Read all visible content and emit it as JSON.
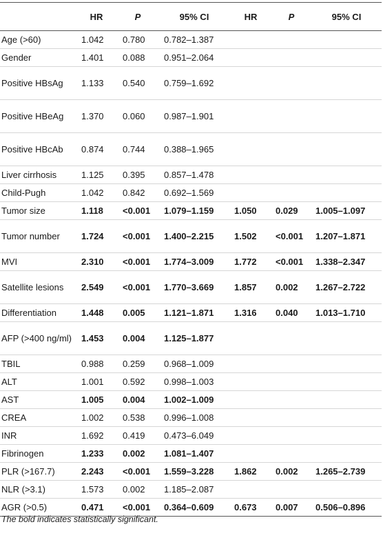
{
  "table": {
    "headers": [
      "",
      "HR",
      "P",
      "95% CI",
      "HR",
      "P",
      "95% CI"
    ],
    "rows": [
      {
        "label": "Age (>60)",
        "double": false,
        "cells": [
          {
            "v": "1.042",
            "b": false
          },
          {
            "v": "0.780",
            "b": false
          },
          {
            "v": "0.782–1.387",
            "b": false
          },
          {
            "v": "",
            "b": false
          },
          {
            "v": "",
            "b": false
          },
          {
            "v": "",
            "b": false
          }
        ]
      },
      {
        "label": "Gender",
        "double": false,
        "cells": [
          {
            "v": "1.401",
            "b": false
          },
          {
            "v": "0.088",
            "b": false
          },
          {
            "v": "0.951–2.064",
            "b": false
          },
          {
            "v": "",
            "b": false
          },
          {
            "v": "",
            "b": false
          },
          {
            "v": "",
            "b": false
          }
        ]
      },
      {
        "label": "Positive HBsAg",
        "double": true,
        "cells": [
          {
            "v": "1.133",
            "b": false
          },
          {
            "v": "0.540",
            "b": false
          },
          {
            "v": "0.759–1.692",
            "b": false
          },
          {
            "v": "",
            "b": false
          },
          {
            "v": "",
            "b": false
          },
          {
            "v": "",
            "b": false
          }
        ]
      },
      {
        "label": "Positive HBeAg",
        "double": true,
        "cells": [
          {
            "v": "1.370",
            "b": false
          },
          {
            "v": "0.060",
            "b": false
          },
          {
            "v": "0.987–1.901",
            "b": false
          },
          {
            "v": "",
            "b": false
          },
          {
            "v": "",
            "b": false
          },
          {
            "v": "",
            "b": false
          }
        ]
      },
      {
        "label": "Positive HBcAb",
        "double": true,
        "cells": [
          {
            "v": "0.874",
            "b": false
          },
          {
            "v": "0.744",
            "b": false
          },
          {
            "v": "0.388–1.965",
            "b": false
          },
          {
            "v": "",
            "b": false
          },
          {
            "v": "",
            "b": false
          },
          {
            "v": "",
            "b": false
          }
        ]
      },
      {
        "label": "Liver cirrhosis",
        "double": false,
        "cells": [
          {
            "v": "1.125",
            "b": false
          },
          {
            "v": "0.395",
            "b": false
          },
          {
            "v": "0.857–1.478",
            "b": false
          },
          {
            "v": "",
            "b": false
          },
          {
            "v": "",
            "b": false
          },
          {
            "v": "",
            "b": false
          }
        ]
      },
      {
        "label": "Child-Pugh",
        "double": false,
        "cells": [
          {
            "v": "1.042",
            "b": false
          },
          {
            "v": "0.842",
            "b": false
          },
          {
            "v": "0.692–1.569",
            "b": false
          },
          {
            "v": "",
            "b": false
          },
          {
            "v": "",
            "b": false
          },
          {
            "v": "",
            "b": false
          }
        ]
      },
      {
        "label": "Tumor size",
        "double": false,
        "cells": [
          {
            "v": "1.118",
            "b": true
          },
          {
            "v": "<0.001",
            "b": true
          },
          {
            "v": "1.079–1.159",
            "b": true
          },
          {
            "v": "1.050",
            "b": true
          },
          {
            "v": "0.029",
            "b": true
          },
          {
            "v": "1.005–1.097",
            "b": true
          }
        ]
      },
      {
        "label": "Tumor number",
        "double": true,
        "cells": [
          {
            "v": "1.724",
            "b": true
          },
          {
            "v": "<0.001",
            "b": true
          },
          {
            "v": "1.400–2.215",
            "b": true
          },
          {
            "v": "1.502",
            "b": true
          },
          {
            "v": "<0.001",
            "b": true
          },
          {
            "v": "1.207–1.871",
            "b": true
          }
        ]
      },
      {
        "label": "MVI",
        "double": false,
        "cells": [
          {
            "v": "2.310",
            "b": true
          },
          {
            "v": "<0.001",
            "b": true
          },
          {
            "v": "1.774–3.009",
            "b": true
          },
          {
            "v": "1.772",
            "b": true
          },
          {
            "v": "<0.001",
            "b": true
          },
          {
            "v": "1.338–2.347",
            "b": true
          }
        ]
      },
      {
        "label": "Satellite lesions",
        "double": true,
        "cells": [
          {
            "v": "2.549",
            "b": true
          },
          {
            "v": "<0.001",
            "b": true
          },
          {
            "v": "1.770–3.669",
            "b": true
          },
          {
            "v": "1.857",
            "b": true
          },
          {
            "v": "0.002",
            "b": true
          },
          {
            "v": "1.267–2.722",
            "b": true
          }
        ]
      },
      {
        "label": "Differentiation",
        "double": false,
        "cells": [
          {
            "v": "1.448",
            "b": true
          },
          {
            "v": "0.005",
            "b": true
          },
          {
            "v": "1.121–1.871",
            "b": true
          },
          {
            "v": "1.316",
            "b": true
          },
          {
            "v": "0.040",
            "b": true
          },
          {
            "v": "1.013–1.710",
            "b": true
          }
        ]
      },
      {
        "label": "AFP (>400 ng/ml)",
        "double": true,
        "cells": [
          {
            "v": "1.453",
            "b": true
          },
          {
            "v": "0.004",
            "b": true
          },
          {
            "v": "1.125–1.877",
            "b": true
          },
          {
            "v": "",
            "b": false
          },
          {
            "v": "",
            "b": false
          },
          {
            "v": "",
            "b": false
          }
        ]
      },
      {
        "label": "TBIL",
        "double": false,
        "cells": [
          {
            "v": "0.988",
            "b": false
          },
          {
            "v": "0.259",
            "b": false
          },
          {
            "v": "0.968–1.009",
            "b": false
          },
          {
            "v": "",
            "b": false
          },
          {
            "v": "",
            "b": false
          },
          {
            "v": "",
            "b": false
          }
        ]
      },
      {
        "label": "ALT",
        "double": false,
        "cells": [
          {
            "v": "1.001",
            "b": false
          },
          {
            "v": "0.592",
            "b": false
          },
          {
            "v": "0.998–1.003",
            "b": false
          },
          {
            "v": "",
            "b": false
          },
          {
            "v": "",
            "b": false
          },
          {
            "v": "",
            "b": false
          }
        ]
      },
      {
        "label": "AST",
        "double": false,
        "cells": [
          {
            "v": "1.005",
            "b": true
          },
          {
            "v": "0.004",
            "b": true
          },
          {
            "v": "1.002–1.009",
            "b": true
          },
          {
            "v": "",
            "b": false
          },
          {
            "v": "",
            "b": false
          },
          {
            "v": "",
            "b": false
          }
        ]
      },
      {
        "label": "CREA",
        "double": false,
        "cells": [
          {
            "v": "1.002",
            "b": false
          },
          {
            "v": "0.538",
            "b": false
          },
          {
            "v": "0.996–1.008",
            "b": false
          },
          {
            "v": "",
            "b": false
          },
          {
            "v": "",
            "b": false
          },
          {
            "v": "",
            "b": false
          }
        ]
      },
      {
        "label": "INR",
        "double": false,
        "cells": [
          {
            "v": "1.692",
            "b": false
          },
          {
            "v": "0.419",
            "b": false
          },
          {
            "v": "0.473–6.049",
            "b": false
          },
          {
            "v": "",
            "b": false
          },
          {
            "v": "",
            "b": false
          },
          {
            "v": "",
            "b": false
          }
        ]
      },
      {
        "label": "Fibrinogen",
        "double": false,
        "cells": [
          {
            "v": "1.233",
            "b": true
          },
          {
            "v": "0.002",
            "b": true
          },
          {
            "v": "1.081–1.407",
            "b": true
          },
          {
            "v": "",
            "b": false
          },
          {
            "v": "",
            "b": false
          },
          {
            "v": "",
            "b": false
          }
        ]
      },
      {
        "label": "PLR (>167.7)",
        "double": false,
        "cells": [
          {
            "v": "2.243",
            "b": true
          },
          {
            "v": "<0.001",
            "b": true
          },
          {
            "v": "1.559–3.228",
            "b": true
          },
          {
            "v": "1.862",
            "b": true
          },
          {
            "v": "0.002",
            "b": true
          },
          {
            "v": "1.265–2.739",
            "b": true
          }
        ]
      },
      {
        "label": "NLR (>3.1)",
        "double": false,
        "cells": [
          {
            "v": "1.573",
            "b": false
          },
          {
            "v": "0.002",
            "b": false
          },
          {
            "v": "1.185–2.087",
            "b": false
          },
          {
            "v": "",
            "b": false
          },
          {
            "v": "",
            "b": false
          },
          {
            "v": "",
            "b": false
          }
        ]
      },
      {
        "label": "AGR (>0.5)",
        "double": false,
        "cells": [
          {
            "v": "0.471",
            "b": true
          },
          {
            "v": "<0.001",
            "b": true
          },
          {
            "v": "0.364–0.609",
            "b": true
          },
          {
            "v": "0.673",
            "b": true
          },
          {
            "v": "0.007",
            "b": true
          },
          {
            "v": "0.506–0.896",
            "b": true
          }
        ]
      }
    ]
  },
  "footnote": "The bold indicates statistically significant."
}
